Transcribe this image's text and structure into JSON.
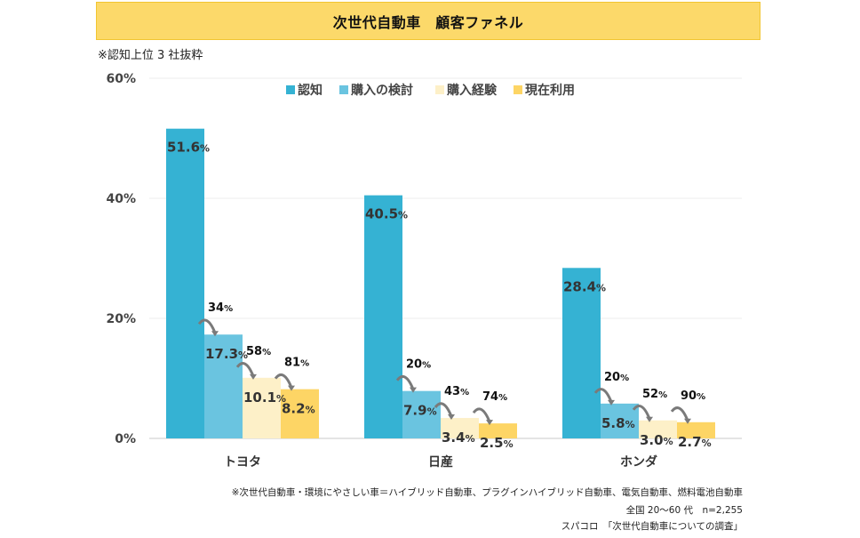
{
  "title": "次世代自動車　顧客ファネル",
  "subnote": "※認知上位 3 社抜粋",
  "footnotes": [
    "※次世代自動車・環境にやさしい車＝ハイブリッド自動車、プラグインハイブリッド自動車、電気自動車、燃料電池自動車",
    "全国 20〜60 代　n=2,255",
    "スパコロ　「次世代自動車についての調査」"
  ],
  "chart_data": {
    "type": "bar",
    "title": "次世代自動車　顧客ファネル",
    "xlabel": "",
    "ylabel": "",
    "ylim": [
      0,
      60
    ],
    "yticks": [
      0,
      20,
      40,
      60
    ],
    "ytick_labels": [
      "0%",
      "20%",
      "40%",
      "60%"
    ],
    "grid": true,
    "legend_position": "top-center",
    "categories": [
      "トヨタ",
      "日産",
      "ホンダ"
    ],
    "series": [
      {
        "name": "認知",
        "color": "#35b2d3",
        "values": [
          51.6,
          40.5,
          28.4
        ],
        "labels": [
          "51.6",
          "40.5",
          "28.4"
        ]
      },
      {
        "name": "購入の検討",
        "color": "#6ac4e0",
        "values": [
          17.3,
          7.9,
          5.8
        ],
        "labels": [
          "17.3",
          "7.9",
          "5.8"
        ]
      },
      {
        "name": "購入経験",
        "color": "#fdf0c8",
        "values": [
          10.1,
          3.4,
          3.0
        ],
        "labels": [
          "10.1",
          "3.4",
          "3.0"
        ]
      },
      {
        "name": "現在利用",
        "color": "#fdd565",
        "values": [
          8.2,
          2.5,
          2.7
        ],
        "labels": [
          "8.2",
          "2.5",
          "2.7"
        ]
      }
    ],
    "conversion_rates": [
      [
        "34",
        "58",
        "81"
      ],
      [
        "20",
        "43",
        "74"
      ],
      [
        "20",
        "52",
        "90"
      ]
    ],
    "percent_suffix": "%"
  }
}
